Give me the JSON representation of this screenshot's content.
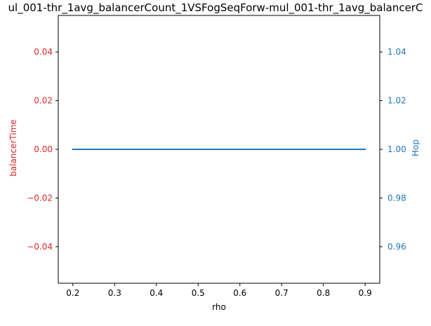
{
  "chart_data": {
    "type": "line",
    "title": "ul_001-thr_1avg_balancerCount_1VSFogSeqForw-mul_001-thr_1avg_balancerC",
    "xlabel": "rho",
    "ylabel_left": "balancerTime",
    "ylabel_right": "Hop",
    "xlim": [
      0.165,
      0.935
    ],
    "ylim_left": [
      -0.055,
      0.055
    ],
    "ylim_right": [
      0.945,
      1.055
    ],
    "x_ticks": [
      0.2,
      0.3,
      0.4,
      0.5,
      0.6,
      0.7,
      0.8,
      0.9
    ],
    "x_tick_labels": [
      "0.2",
      "0.3",
      "0.4",
      "0.5",
      "0.6",
      "0.7",
      "0.8",
      "0.9"
    ],
    "y_left_ticks": [
      0.04,
      0.02,
      0.0,
      -0.02,
      -0.04
    ],
    "y_left_tick_labels": [
      "0.04",
      "0.02",
      "0.00",
      "−0.02",
      "−0.04"
    ],
    "y_right_ticks": [
      1.04,
      1.02,
      1.0,
      0.98,
      0.96
    ],
    "y_right_tick_labels": [
      "1.04",
      "1.02",
      "1.00",
      "0.98",
      "0.96"
    ],
    "grid": false,
    "series": [
      {
        "axis": "left",
        "color": "#d62728",
        "x": [
          0.2,
          0.3,
          0.4,
          0.5,
          0.6,
          0.7,
          0.8,
          0.9
        ],
        "y": [
          0,
          0,
          0,
          0,
          0,
          0,
          0,
          0
        ]
      },
      {
        "axis": "right",
        "color": "#1f77b4",
        "x": [
          0.2,
          0.3,
          0.4,
          0.5,
          0.6,
          0.7,
          0.8,
          0.9
        ],
        "y": [
          1,
          1,
          1,
          1,
          1,
          1,
          1,
          1
        ]
      }
    ],
    "colors": {
      "left_axis": "#d62728",
      "right_axis": "#1f77b4",
      "text": "#000000"
    }
  }
}
